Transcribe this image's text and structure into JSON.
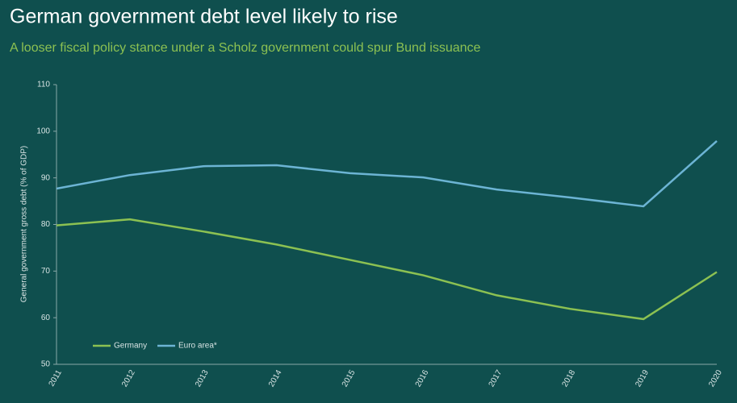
{
  "chart_data": {
    "type": "line",
    "title": "German government debt level likely to rise",
    "subtitle": "A looser fiscal policy stance under a Scholz government could spur Bund issuance",
    "y_label": "General government gross debt (% of GDP)",
    "categories": [
      "2011",
      "2012",
      "2013",
      "2014",
      "2015",
      "2016",
      "2017",
      "2018",
      "2019",
      "2020"
    ],
    "series": [
      {
        "name": "Germany",
        "color": "#8cc152",
        "values": [
          79.8,
          81.1,
          78.5,
          75.7,
          72.4,
          69.1,
          64.8,
          61.9,
          59.7,
          69.8
        ]
      },
      {
        "name": "Euro area*",
        "color": "#6cb4d4",
        "values": [
          87.7,
          90.6,
          92.5,
          92.7,
          91.0,
          90.1,
          87.5,
          85.8,
          83.9,
          97.9
        ]
      }
    ],
    "ylim": [
      50,
      110
    ],
    "yticks": [
      50,
      60,
      70,
      80,
      90,
      100,
      110
    ],
    "legend": "lower left"
  }
}
